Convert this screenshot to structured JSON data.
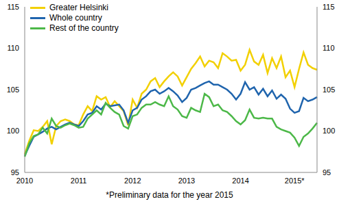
{
  "chart_data": {
    "type": "line",
    "footnote": "*Preliminary data for the year 2015",
    "legend": "upper left",
    "grid": false,
    "categories": [
      "2010",
      null,
      null,
      null,
      null,
      null,
      null,
      null,
      null,
      null,
      null,
      null,
      "2011",
      null,
      null,
      null,
      null,
      null,
      null,
      null,
      null,
      null,
      null,
      null,
      "2012",
      null,
      null,
      null,
      null,
      null,
      null,
      null,
      null,
      null,
      null,
      null,
      "2013",
      null,
      null,
      null,
      null,
      null,
      null,
      null,
      null,
      null,
      null,
      null,
      "2014",
      null,
      null,
      null,
      null,
      null,
      null,
      null,
      null,
      null,
      null,
      null,
      "2015*",
      null,
      null,
      null,
      null,
      null
    ],
    "ylim": [
      95,
      115
    ],
    "yticks": [
      95,
      100,
      105,
      110,
      115
    ],
    "y2lim": [
      95,
      115
    ],
    "y2ticks": [
      95,
      100,
      105,
      110,
      115
    ],
    "series": [
      {
        "name": "Greater Helsinki",
        "color": "#f2d000",
        "values": [
          97.2,
          98.8,
          100.1,
          100.0,
          100.5,
          101.2,
          98.4,
          100.6,
          101.2,
          101.4,
          101.2,
          100.8,
          100.7,
          102.0,
          103.0,
          102.4,
          104.2,
          103.8,
          104.1,
          102.9,
          103.6,
          103.0,
          102.4,
          100.7,
          103.8,
          102.8,
          104.5,
          105.0,
          106.0,
          106.4,
          105.3,
          106.0,
          106.6,
          107.1,
          106.6,
          105.5,
          106.5,
          107.5,
          108.2,
          109.0,
          107.8,
          108.5,
          108.3,
          107.6,
          109.4,
          109.0,
          108.5,
          108.6,
          107.3,
          108.0,
          109.8,
          108.4,
          108.0,
          109.2,
          107.0,
          108.8,
          107.6,
          109.0,
          106.5,
          107.3,
          105.3,
          107.5,
          109.5,
          108.0,
          107.6,
          107.4
        ]
      },
      {
        "name": "Whole country",
        "color": "#1f64ad",
        "values": [
          97.0,
          98.2,
          99.3,
          99.6,
          99.9,
          100.3,
          100.5,
          100.2,
          100.5,
          100.8,
          101.0,
          100.8,
          100.6,
          101.2,
          102.0,
          102.2,
          103.0,
          102.6,
          103.3,
          103.0,
          103.1,
          103.2,
          102.5,
          101.0,
          102.5,
          102.8,
          103.8,
          104.2,
          104.8,
          105.0,
          104.5,
          104.8,
          105.2,
          104.8,
          104.3,
          103.5,
          104.0,
          105.0,
          105.2,
          105.5,
          105.8,
          106.0,
          105.6,
          105.6,
          105.3,
          105.0,
          104.5,
          103.8,
          104.5,
          105.9,
          105.0,
          105.3,
          104.4,
          105.1,
          104.2,
          104.9,
          103.9,
          104.4,
          103.9,
          102.7,
          102.2,
          102.4,
          104.0,
          103.6,
          103.8,
          104.1
        ]
      },
      {
        "name": "Rest of the country",
        "color": "#4cb848",
        "values": [
          96.9,
          98.5,
          99.4,
          99.6,
          100.4,
          99.7,
          101.5,
          100.6,
          100.4,
          100.7,
          100.9,
          100.7,
          100.4,
          100.5,
          101.5,
          102.0,
          102.5,
          102.0,
          103.4,
          102.8,
          102.3,
          102.0,
          100.6,
          100.3,
          101.8,
          102.0,
          102.8,
          103.2,
          103.2,
          103.5,
          103.2,
          103.0,
          104.2,
          103.0,
          102.6,
          101.8,
          101.6,
          102.8,
          102.5,
          102.3,
          104.5,
          104.1,
          103.0,
          103.2,
          102.5,
          102.3,
          101.8,
          101.2,
          100.8,
          101.3,
          102.6,
          101.6,
          101.5,
          101.6,
          101.5,
          101.5,
          100.5,
          100.2,
          100.0,
          99.8,
          99.2,
          98.2,
          99.3,
          99.7,
          100.3,
          101.0
        ]
      }
    ]
  }
}
